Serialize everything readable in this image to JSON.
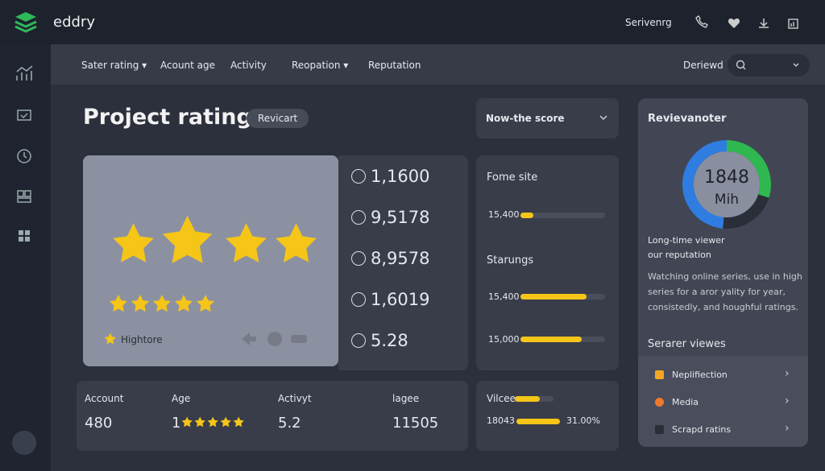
{
  "header": {
    "brand": "eddry",
    "user": "Serivenrg"
  },
  "nav": {
    "tabs": [
      "Sater rating",
      "Acount age",
      "Activity",
      "Reopation",
      "Reputation"
    ],
    "filter": "Deriewd"
  },
  "page": {
    "title": "Project rating",
    "badge": "Revicart"
  },
  "rating_card": {
    "label": "Hightore"
  },
  "stats": [
    "1,1600",
    "9,5178",
    "8,9578",
    "1,6019",
    "5.28"
  ],
  "score_dropdown": "Now-the score",
  "sources": {
    "heading1": "Fome site",
    "row1": "15,400",
    "heading2": "Starungs",
    "row2": "15,400",
    "row3": "15,000"
  },
  "summary": [
    {
      "label": "Account",
      "value": "480"
    },
    {
      "label": "Age",
      "value": "1"
    },
    {
      "label": "Activyt",
      "value": "5.2"
    },
    {
      "label": "lagee",
      "value": "11505"
    }
  ],
  "mini": {
    "label": "Vilcee",
    "value": "18043",
    "percent": "31.00%"
  },
  "reviewer": {
    "title": "Revievanoter",
    "donut_value": "1848",
    "donut_unit": "Mih",
    "subtitle1": "Long-time viewer",
    "subtitle2": "our reputation",
    "description": "Watching online series, use in high series for a aror yality for year, consistedly, and houghful ratings.",
    "list_title": "Serarer viewes",
    "items": [
      "Neplifiection",
      "Media",
      "Scrapd ratins"
    ]
  }
}
